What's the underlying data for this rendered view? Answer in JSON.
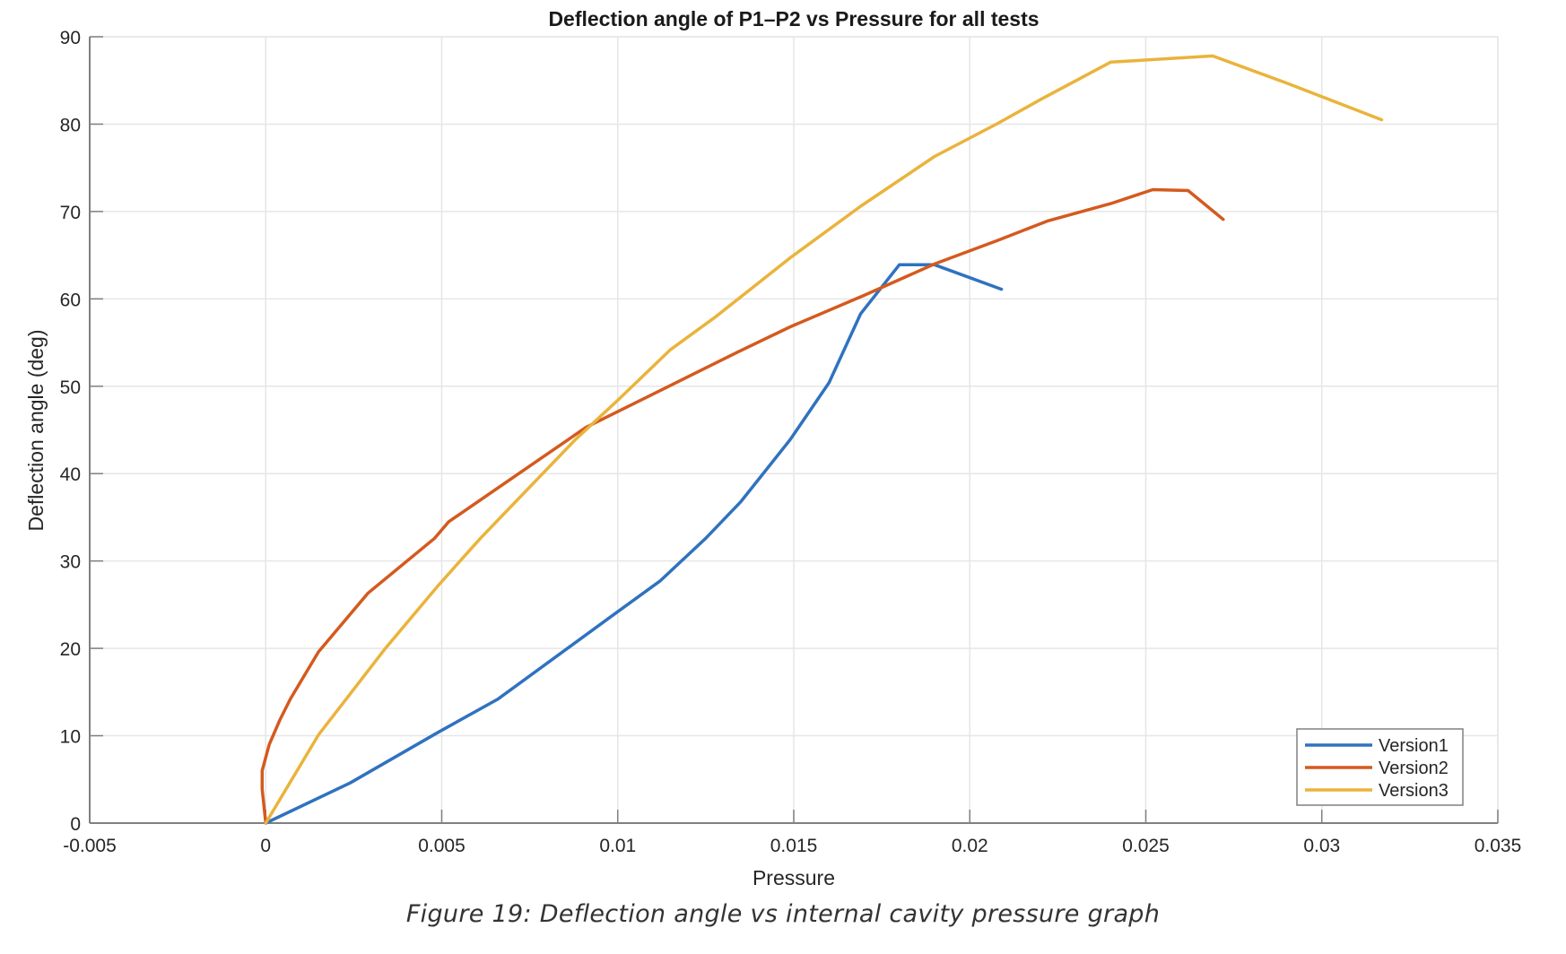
{
  "chart_data": {
    "type": "line",
    "title": "Deflection angle of P1–P2 vs Pressure for all tests",
    "xlabel": "Pressure",
    "ylabel": "Deflection angle (deg)",
    "xlim": [
      -0.005,
      0.035
    ],
    "ylim": [
      0,
      90
    ],
    "xticks": [
      -0.005,
      0,
      0.005,
      0.01,
      0.015,
      0.02,
      0.025,
      0.03,
      0.035
    ],
    "xtick_labels": [
      "-0.005",
      "0",
      "0.005",
      "0.01",
      "0.015",
      "0.02",
      "0.025",
      "0.03",
      "0.035"
    ],
    "yticks": [
      0,
      10,
      20,
      30,
      40,
      50,
      60,
      70,
      80,
      90
    ],
    "ytick_labels": [
      "0",
      "10",
      "20",
      "30",
      "40",
      "50",
      "60",
      "70",
      "80",
      "90"
    ],
    "grid": true,
    "legend_position": "bottom-right",
    "series": [
      {
        "name": "Version1",
        "color": "#2F72BF",
        "x": [
          0,
          0.0024,
          0.0049,
          0.0066,
          0.0099,
          0.0112,
          0.0125,
          0.0135,
          0.0149,
          0.016,
          0.0169,
          0.018,
          0.019,
          0.0209
        ],
        "y": [
          0,
          4.6,
          10.4,
          14.2,
          23.9,
          27.7,
          32.6,
          36.8,
          43.9,
          50.4,
          58.3,
          63.9,
          63.9,
          61.1
        ]
      },
      {
        "name": "Version2",
        "color": "#D45A1E",
        "x": [
          0,
          -0.0001,
          -0.0001,
          0.0001,
          0.0004,
          0.0007,
          0.0015,
          0.0029,
          0.0048,
          0.0052,
          0.0091,
          0.0116,
          0.0134,
          0.0149,
          0.017,
          0.019,
          0.0208,
          0.0222,
          0.024,
          0.0252,
          0.0262,
          0.0272
        ],
        "y": [
          0,
          3.9,
          6.0,
          9.0,
          11.8,
          14.2,
          19.6,
          26.3,
          32.6,
          34.5,
          45.3,
          50.3,
          53.9,
          56.8,
          60.4,
          64.0,
          66.7,
          68.9,
          70.9,
          72.5,
          72.4,
          69.1
        ]
      },
      {
        "name": "Version3",
        "color": "#EAB33B",
        "x": [
          0,
          0.0015,
          0.0034,
          0.0049,
          0.0061,
          0.0088,
          0.01,
          0.0115,
          0.0128,
          0.0149,
          0.0169,
          0.019,
          0.0208,
          0.022,
          0.024,
          0.0269,
          0.029,
          0.0317
        ],
        "y": [
          0,
          10.1,
          20.0,
          27.2,
          32.6,
          43.9,
          48.4,
          54.2,
          58.0,
          64.7,
          70.6,
          76.3,
          80.1,
          82.8,
          87.1,
          87.8,
          84.7,
          80.5
        ]
      }
    ]
  },
  "caption": "Figure 19: Deflection angle vs internal cavity pressure graph"
}
